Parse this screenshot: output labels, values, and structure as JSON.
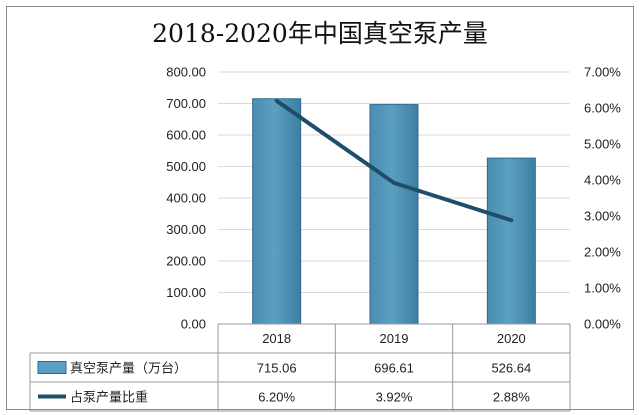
{
  "chart_data": {
    "type": "bar",
    "title": "2018-2020年中国真空泵产量",
    "categories": [
      "2018",
      "2019",
      "2020"
    ],
    "series": [
      {
        "name": "真空泵产量（万台）",
        "type": "bar",
        "axis": "left",
        "values": [
          715.06,
          696.61,
          526.64
        ],
        "labels": [
          "715.06",
          "696.61",
          "526.64"
        ],
        "color": "#5b9fc2"
      },
      {
        "name": "占泵产量比重",
        "type": "line",
        "axis": "right",
        "values": [
          6.2,
          3.92,
          2.88
        ],
        "labels": [
          "6.20%",
          "3.92%",
          "2.88%"
        ],
        "color": "#1f4e6b"
      }
    ],
    "y_left": {
      "range": [
        0,
        800
      ],
      "ticks": [
        "0.00",
        "100.00",
        "200.00",
        "300.00",
        "400.00",
        "500.00",
        "600.00",
        "700.00",
        "800.00"
      ]
    },
    "y_right": {
      "range": [
        0,
        7
      ],
      "ticks": [
        "0.00%",
        "1.00%",
        "2.00%",
        "3.00%",
        "4.00%",
        "5.00%",
        "6.00%",
        "7.00%"
      ]
    },
    "grid": true,
    "legend": "data-table"
  }
}
